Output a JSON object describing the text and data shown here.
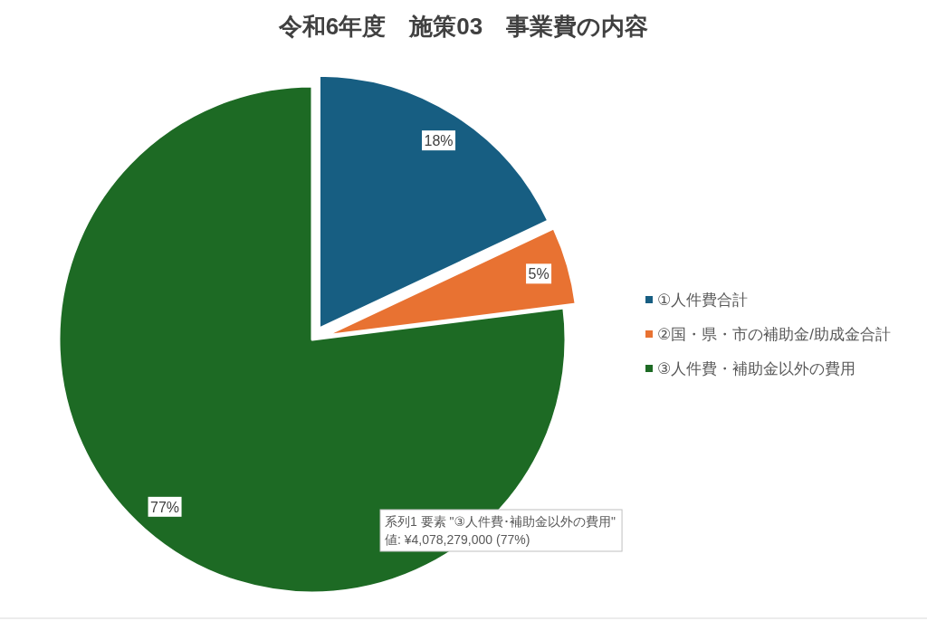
{
  "chart_data": {
    "type": "pie",
    "title": "令和6年度　施策03　事業費の内容",
    "categories": [
      "①人件費合計",
      "②国・県・市の補助金/助成金合計",
      "③人件費・補助金以外の費用"
    ],
    "values": [
      18,
      5,
      77
    ],
    "value_labels": [
      "18%",
      "5%",
      "77%"
    ],
    "colors": [
      "#175e82",
      "#e87232",
      "#1d6a24"
    ],
    "legend": "right",
    "annotations": [
      "系列1 要素 \"③人件費･補助金以外の費用\"\n値: ¥4,078,279,000 (77%)"
    ]
  }
}
